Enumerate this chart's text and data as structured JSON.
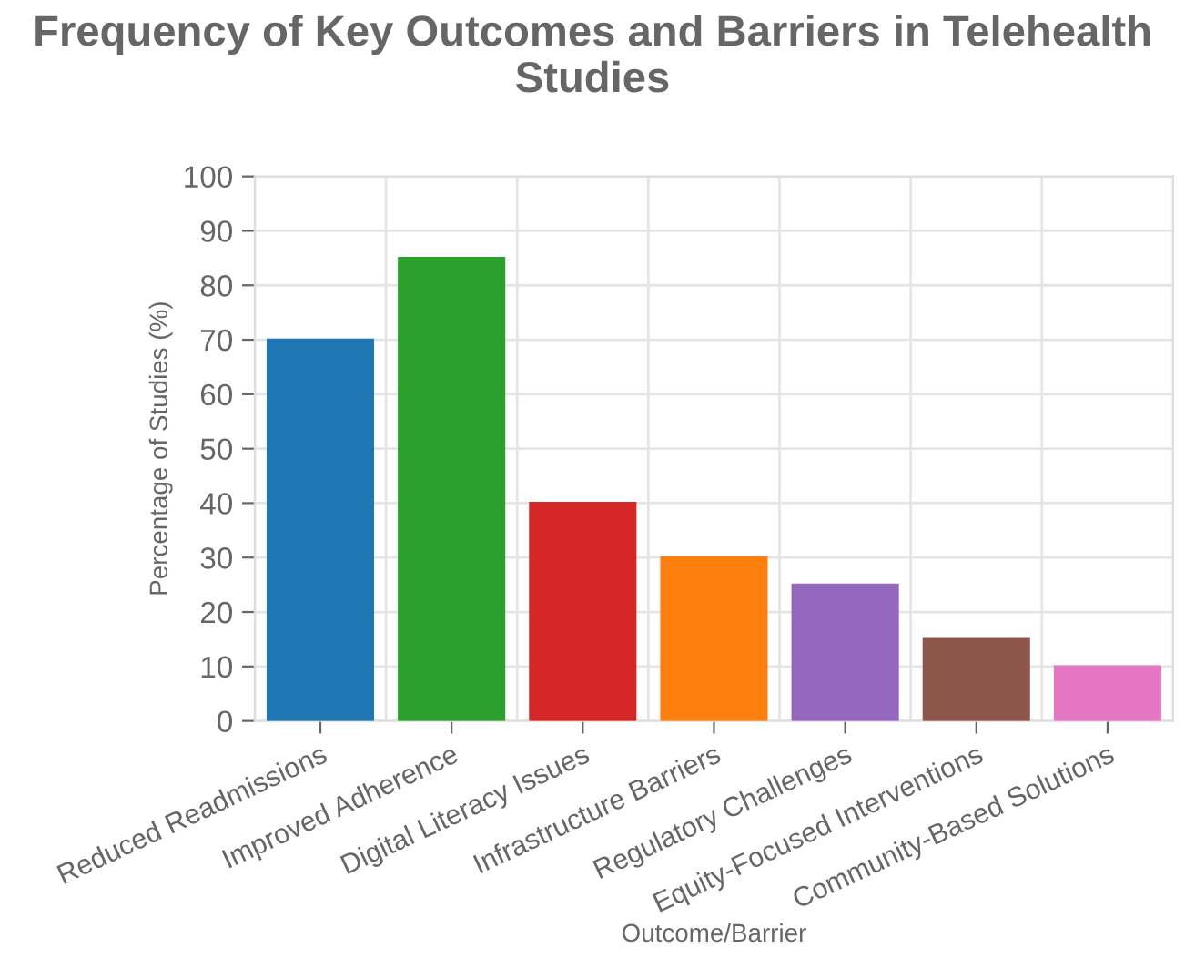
{
  "chart_data": {
    "type": "bar",
    "title": "Frequency of Key Outcomes and Barriers in Telehealth Studies",
    "xlabel": "Outcome/Barrier",
    "ylabel": "Percentage of Studies (%)",
    "categories": [
      "Reduced Readmissions",
      "Improved Adherence",
      "Digital Literacy Issues",
      "Infrastructure Barriers",
      "Regulatory Challenges",
      "Equity-Focused Interventions",
      "Community-Based Solutions"
    ],
    "values": [
      70,
      85,
      40,
      30,
      25,
      15,
      10
    ],
    "colors": [
      "#1f77b4",
      "#2ca02c",
      "#d62728",
      "#ff7f0e",
      "#9467bd",
      "#8c564b",
      "#e377c2"
    ],
    "ylim": [
      0,
      100
    ],
    "yticks": [
      0,
      10,
      20,
      30,
      40,
      50,
      60,
      70,
      80,
      90,
      100
    ],
    "grid": true,
    "legend": false
  }
}
